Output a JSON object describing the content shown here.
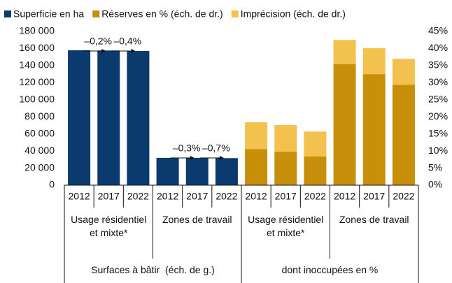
{
  "chart_data": {
    "type": "bar",
    "categories": [
      "2012",
      "2017",
      "2022",
      "2012",
      "2017",
      "2022",
      "2012",
      "2017",
      "2022",
      "2012",
      "2017",
      "2022"
    ],
    "group_labels": [
      "Usage résidentiel et mixte*",
      "Zones de travail",
      "Usage résidentiel et mixte*",
      "Zones de travail"
    ],
    "super_group_labels": [
      "Surfaces à bâtir  (éch. de g.)",
      "dont inoccupées en %"
    ],
    "series": [
      {
        "name": "Superficie en ha",
        "color": "#0b3a6e",
        "values": [
          158000,
          157700,
          157100,
          32000,
          31900,
          31700,
          null,
          null,
          null,
          null,
          null,
          null
        ]
      },
      {
        "name": "Réserves en % (éch. de dr.)",
        "color": "#c8900a",
        "axis": "y2",
        "values": [
          null,
          null,
          null,
          null,
          null,
          null,
          10.6,
          9.8,
          8.4,
          35.4,
          32.5,
          29.4
        ]
      },
      {
        "name": "Imprécision (éch. de dr.)",
        "color": "#f2c14e",
        "axis": "y2",
        "values": [
          null,
          null,
          null,
          null,
          null,
          null,
          7.8,
          7.8,
          7.3,
          7.1,
          7.6,
          7.6
        ]
      }
    ],
    "stacked": true,
    "annotations": [
      "–0,2%",
      "–0,4%",
      "–0,3%",
      "–0,7%"
    ],
    "ylim": [
      0,
      180000
    ],
    "yticks": [
      0,
      {
        "value": 20000,
        "label": "20 000"
      },
      {
        "value": 40000,
        "label": "40 000"
      },
      {
        "value": 60000,
        "label": "60 000"
      },
      {
        "value": 80000,
        "label": "80 000"
      },
      {
        "value": 100000,
        "label": "100 000"
      },
      {
        "value": 120000,
        "label": "120 000"
      },
      {
        "value": 140000,
        "label": "140 000"
      },
      {
        "value": 160000,
        "label": "160 000"
      },
      {
        "value": 180000,
        "label": "180 000"
      }
    ],
    "y2lim": [
      0,
      45
    ],
    "y2ticks": [
      {
        "value": 0,
        "label": "0%"
      },
      {
        "value": 5,
        "label": "5%"
      },
      {
        "value": 10,
        "label": "10%"
      },
      {
        "value": 15,
        "label": "15%"
      },
      {
        "value": 20,
        "label": "20%"
      },
      {
        "value": 25,
        "label": "25%"
      },
      {
        "value": 30,
        "label": "30%"
      },
      {
        "value": 35,
        "label": "35%"
      },
      {
        "value": 40,
        "label": "40%"
      },
      {
        "value": 45,
        "label": "45%"
      }
    ],
    "grid": false,
    "legend": "top"
  }
}
